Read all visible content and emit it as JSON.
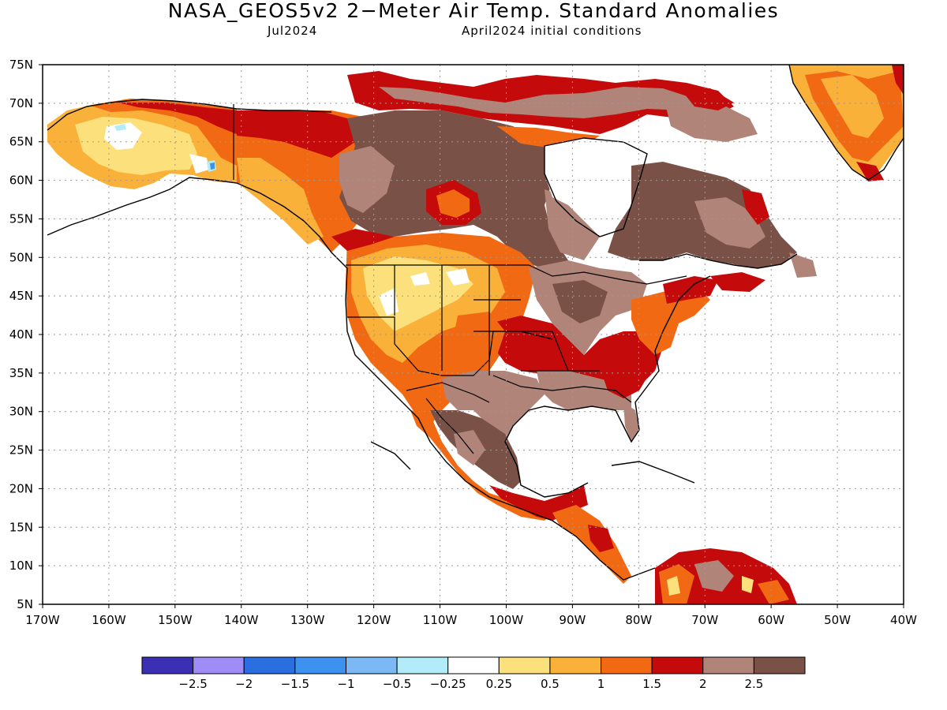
{
  "header": {
    "title": "NASA_GEOS5v2 2−Meter Air Temp. Standard Anomalies",
    "valid_month": "Jul2024",
    "init_conditions": "April2024 initial conditions"
  },
  "map": {
    "region": "North America",
    "lat_ticks": [
      "75N",
      "70N",
      "65N",
      "60N",
      "55N",
      "50N",
      "45N",
      "40N",
      "35N",
      "30N",
      "25N",
      "20N",
      "15N",
      "10N",
      "5N"
    ],
    "lon_ticks": [
      "170W",
      "160W",
      "150W",
      "140W",
      "130W",
      "120W",
      "110W",
      "100W",
      "90W",
      "80W",
      "70W",
      "60W",
      "50W",
      "40W"
    ],
    "lat_values": [
      75,
      70,
      65,
      60,
      55,
      50,
      45,
      40,
      35,
      30,
      25,
      20,
      15,
      10,
      5
    ],
    "lon_values": [
      -170,
      -160,
      -150,
      -140,
      -130,
      -120,
      -110,
      -100,
      -90,
      -80,
      -70,
      -60,
      -50,
      -40
    ],
    "grid": "dotted"
  },
  "colorbar": {
    "colors": [
      "#3b2fb4",
      "#9f8cf6",
      "#2a6ee0",
      "#3d92ef",
      "#7cb8f4",
      "#b2ecf8",
      "#ffffff",
      "#fbe07b",
      "#f9b13a",
      "#f26913",
      "#c40a0b",
      "#b08478",
      "#7a5146"
    ],
    "labels": [
      "−2.5",
      "−2",
      "−1.5",
      "−1",
      "−0.5",
      "−0.25",
      "0.25",
      "0.5",
      "1",
      "1.5",
      "2",
      "2.5"
    ]
  },
  "colors": {
    "land_outline": "#000000",
    "ocean": "#ffffff"
  }
}
